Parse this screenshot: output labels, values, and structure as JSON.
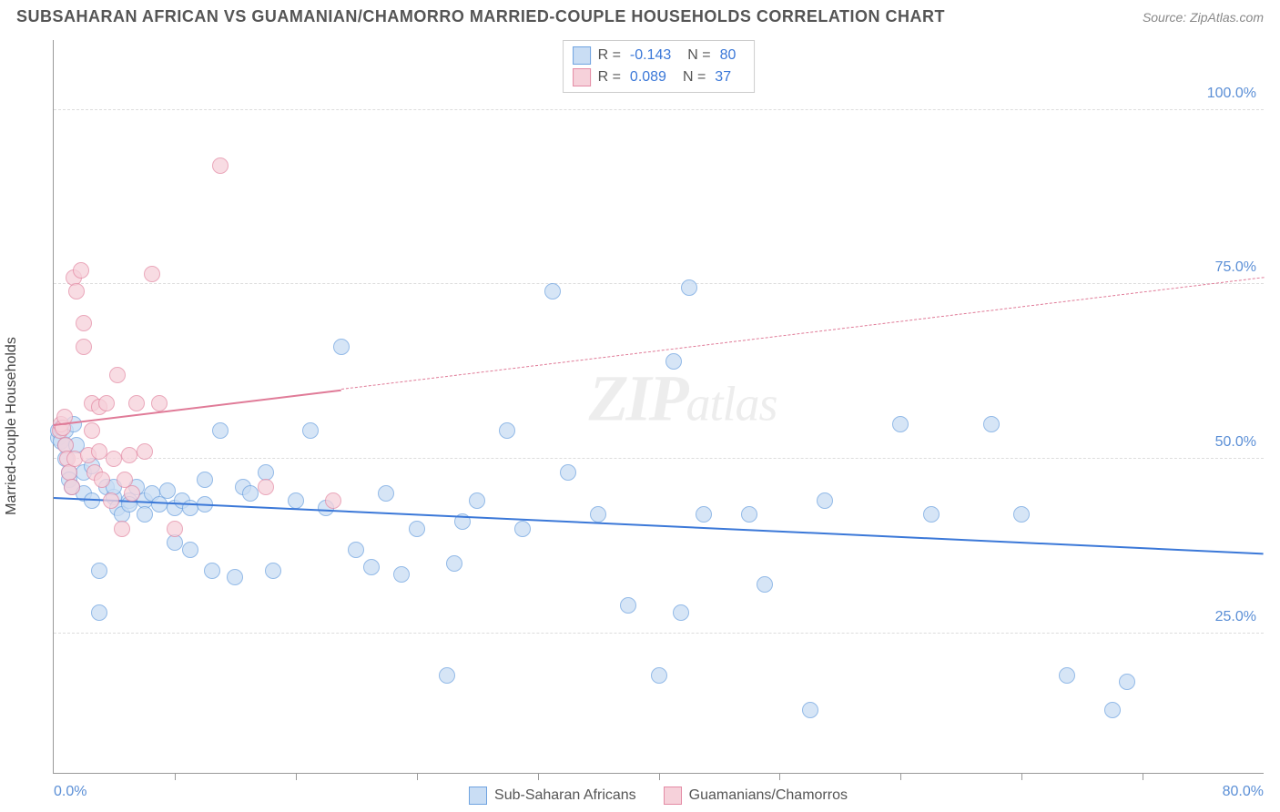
{
  "header": {
    "title": "SUBSAHARAN AFRICAN VS GUAMANIAN/CHAMORRO MARRIED-COUPLE HOUSEHOLDS CORRELATION CHART",
    "source_prefix": "Source: ",
    "source": "ZipAtlas.com"
  },
  "watermark": {
    "part1": "ZIP",
    "part2": "atlas"
  },
  "chart": {
    "type": "scatter",
    "ylabel": "Married-couple Households",
    "xlim": [
      0,
      80
    ],
    "ylim": [
      5,
      110
    ],
    "background_color": "#ffffff",
    "grid_color": "#dddddd",
    "axis_color": "#999999",
    "tick_label_color": "#5b8fd6",
    "yticks": [
      {
        "v": 25,
        "label": "25.0%"
      },
      {
        "v": 50,
        "label": "50.0%"
      },
      {
        "v": 75,
        "label": "75.0%"
      },
      {
        "v": 100,
        "label": "100.0%"
      }
    ],
    "xticks_minor": [
      8,
      16,
      24,
      32,
      40,
      48,
      56,
      64,
      72
    ],
    "xtick_labels": [
      {
        "v": 0,
        "label": "0.0%",
        "align": "left"
      },
      {
        "v": 80,
        "label": "80.0%",
        "align": "right"
      }
    ],
    "marker_radius": 9,
    "series": [
      {
        "id": "blue",
        "name": "Sub-Saharan Africans",
        "fill": "#c9ddf4",
        "stroke": "#6fa3e0",
        "fill_opacity": 0.75,
        "R_label": "R =",
        "R": "-0.143",
        "N_label": "N =",
        "N": "80",
        "trend": {
          "color": "#3b78d8",
          "width": 2.5,
          "style_solid_until_x": 80,
          "y_at_xmin": 44.5,
          "y_at_xmax": 36.5
        },
        "points": [
          [
            0.3,
            53
          ],
          [
            0.3,
            54
          ],
          [
            0.5,
            52.5
          ],
          [
            0.5,
            54.5
          ],
          [
            0.8,
            52
          ],
          [
            0.8,
            54
          ],
          [
            0.8,
            50
          ],
          [
            1,
            48
          ],
          [
            1,
            47
          ],
          [
            1.2,
            46
          ],
          [
            1.3,
            55
          ],
          [
            1.5,
            52
          ],
          [
            2,
            48
          ],
          [
            2,
            45
          ],
          [
            2.5,
            49
          ],
          [
            2.5,
            44
          ],
          [
            3,
            34
          ],
          [
            3,
            28
          ],
          [
            3.5,
            46
          ],
          [
            4,
            44.5
          ],
          [
            4,
            46
          ],
          [
            4.2,
            43
          ],
          [
            4.5,
            42
          ],
          [
            5,
            44
          ],
          [
            5,
            43.5
          ],
          [
            5.5,
            46
          ],
          [
            6,
            44
          ],
          [
            6,
            42
          ],
          [
            6.5,
            45
          ],
          [
            7,
            43.5
          ],
          [
            7.5,
            45.5
          ],
          [
            8,
            43
          ],
          [
            8,
            38
          ],
          [
            8.5,
            44
          ],
          [
            9,
            43
          ],
          [
            9,
            37
          ],
          [
            10,
            43.5
          ],
          [
            10,
            47
          ],
          [
            10.5,
            34
          ],
          [
            11,
            54
          ],
          [
            12,
            33
          ],
          [
            12.5,
            46
          ],
          [
            13,
            45
          ],
          [
            14,
            48
          ],
          [
            14.5,
            34
          ],
          [
            16,
            44
          ],
          [
            17,
            54
          ],
          [
            18,
            43
          ],
          [
            19,
            66
          ],
          [
            20,
            37
          ],
          [
            21,
            34.5
          ],
          [
            22,
            45
          ],
          [
            23,
            33.5
          ],
          [
            24,
            40
          ],
          [
            26,
            19
          ],
          [
            26.5,
            35
          ],
          [
            27,
            41
          ],
          [
            28,
            44
          ],
          [
            30,
            54
          ],
          [
            31,
            40
          ],
          [
            33,
            74
          ],
          [
            34,
            48
          ],
          [
            36,
            42
          ],
          [
            38,
            29
          ],
          [
            40,
            19
          ],
          [
            41,
            64
          ],
          [
            41.5,
            28
          ],
          [
            42,
            74.5
          ],
          [
            43,
            42
          ],
          [
            46,
            42
          ],
          [
            47,
            32
          ],
          [
            50,
            14
          ],
          [
            51,
            44
          ],
          [
            56,
            55
          ],
          [
            58,
            42
          ],
          [
            62,
            55
          ],
          [
            64,
            42
          ],
          [
            67,
            19
          ],
          [
            70,
            14
          ],
          [
            71,
            18
          ]
        ]
      },
      {
        "id": "pink",
        "name": "Guamanians/Chamorros",
        "fill": "#f6d1da",
        "stroke": "#e48ba5",
        "fill_opacity": 0.75,
        "R_label": "R =",
        "R": "0.089",
        "N_label": "N =",
        "N": "37",
        "trend": {
          "color": "#e07b98",
          "width": 2,
          "style_solid_until_x": 19,
          "y_at_xmin": 55,
          "y_at_xmax": 76
        },
        "points": [
          [
            0.4,
            54
          ],
          [
            0.5,
            55
          ],
          [
            0.6,
            54.5
          ],
          [
            0.7,
            56
          ],
          [
            0.8,
            52
          ],
          [
            0.9,
            50
          ],
          [
            1,
            48
          ],
          [
            1.2,
            46
          ],
          [
            1.3,
            76
          ],
          [
            1.4,
            50
          ],
          [
            1.5,
            74
          ],
          [
            1.8,
            77
          ],
          [
            2,
            69.5
          ],
          [
            2,
            66
          ],
          [
            2.3,
            50.5
          ],
          [
            2.5,
            54
          ],
          [
            2.5,
            58
          ],
          [
            2.7,
            48
          ],
          [
            3,
            51
          ],
          [
            3,
            57.5
          ],
          [
            3.2,
            47
          ],
          [
            3.5,
            58
          ],
          [
            3.8,
            44
          ],
          [
            4,
            50
          ],
          [
            4.2,
            62
          ],
          [
            4.5,
            40
          ],
          [
            4.7,
            47
          ],
          [
            5,
            50.5
          ],
          [
            5.2,
            45
          ],
          [
            5.5,
            58
          ],
          [
            6,
            51
          ],
          [
            6.5,
            76.5
          ],
          [
            7,
            58
          ],
          [
            8,
            40
          ],
          [
            11,
            92
          ],
          [
            14,
            46
          ],
          [
            18.5,
            44
          ]
        ]
      }
    ],
    "legend_bottom": [
      {
        "series": "blue"
      },
      {
        "series": "pink"
      }
    ]
  }
}
